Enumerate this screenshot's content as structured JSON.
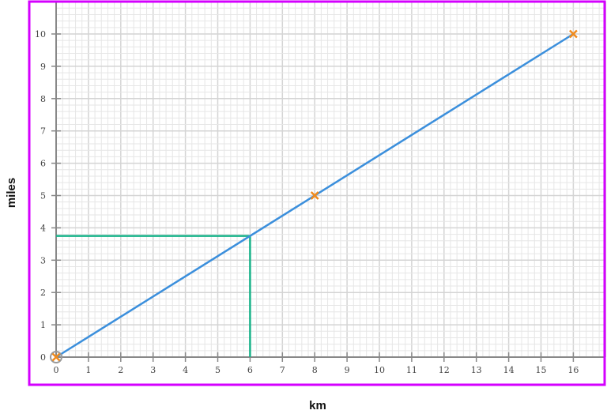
{
  "chart_data": {
    "type": "line",
    "xlabel": "km",
    "ylabel": "miles",
    "xlim": [
      0,
      17
    ],
    "ylim": [
      0,
      11
    ],
    "xticks": [
      0,
      1,
      2,
      3,
      4,
      5,
      6,
      7,
      8,
      9,
      10,
      11,
      12,
      13,
      14,
      15,
      16
    ],
    "yticks": [
      0,
      1,
      2,
      3,
      4,
      5,
      6,
      7,
      8,
      9,
      10
    ],
    "grid": true,
    "minor_grid_step": 0.2,
    "series": [
      {
        "x": [
          0,
          16
        ],
        "y": [
          0,
          10
        ],
        "color": "#3b8fdc"
      }
    ],
    "markers": [
      {
        "x": 0,
        "y": 0
      },
      {
        "x": 8,
        "y": 5
      },
      {
        "x": 16,
        "y": 10
      }
    ],
    "marker_color": "#f08a1c",
    "reading_lines": {
      "x": 6,
      "y": 3.75,
      "color": "#1ab38a"
    },
    "frame_color": "#d400ff"
  }
}
